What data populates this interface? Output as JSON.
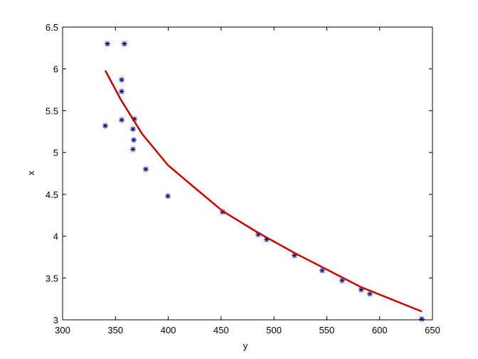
{
  "chart_data": {
    "type": "scatter",
    "xlabel": "y",
    "ylabel": "x",
    "xlim": [
      300,
      650
    ],
    "xticks": [
      300,
      350,
      400,
      450,
      500,
      550,
      600,
      650
    ],
    "ylim": [
      3,
      6.5
    ],
    "yticks": [
      3,
      3.5,
      4,
      4.5,
      5,
      5.5,
      6,
      6.5
    ],
    "grid": false,
    "series": [
      {
        "type": "scatter",
        "marker": "asterisk",
        "color": "#00008b",
        "x": [
          342.4,
          358.5,
          355.9,
          355.9,
          340.4,
          355.9,
          368.0,
          366.6,
          367.3,
          366.6,
          378.7,
          399.6,
          451.4,
          485.1,
          493.1,
          519.4,
          545.6,
          564.5,
          582.6,
          590.7,
          639.8
        ],
        "values": [
          6.3,
          6.3,
          5.87,
          5.73,
          5.32,
          5.39,
          5.4,
          5.28,
          5.15,
          5.04,
          4.8,
          4.48,
          4.29,
          4.02,
          3.96,
          3.77,
          3.59,
          3.47,
          3.36,
          3.31,
          3.01
        ]
      },
      {
        "type": "line",
        "color": "#cc0000",
        "x": [
          340.4,
          355.2,
          375.4,
          399.6,
          425.8,
          451.4,
          485.1,
          519.4,
          545.6,
          582.6,
          639.8
        ],
        "values": [
          5.98,
          5.63,
          5.22,
          4.85,
          4.57,
          4.3,
          4.04,
          3.8,
          3.63,
          3.39,
          3.1
        ]
      }
    ]
  }
}
